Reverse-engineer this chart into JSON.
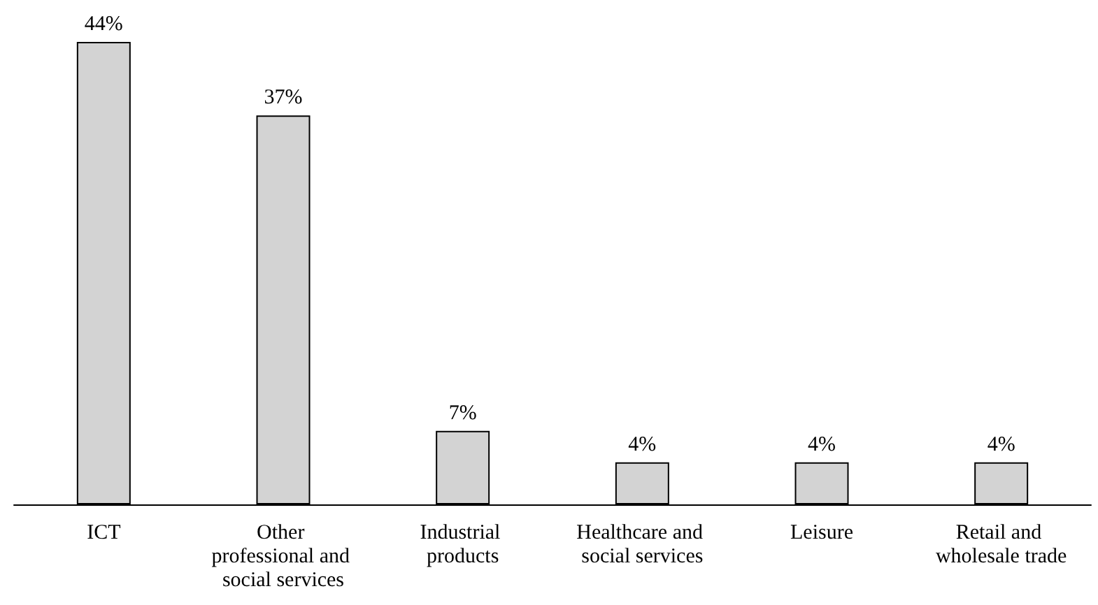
{
  "chart_data": {
    "type": "bar",
    "categories": [
      "ICT",
      "Other professional and social services",
      "Industrial products",
      "Healthcare and social services",
      "Leisure",
      "Retail and wholesale trade"
    ],
    "values": [
      44,
      37,
      7,
      4,
      4,
      4
    ],
    "value_labels": [
      "44%",
      "37%",
      "7%",
      "4%",
      "4%",
      "4%"
    ],
    "color": "#d3d3d3",
    "grid": false
  }
}
